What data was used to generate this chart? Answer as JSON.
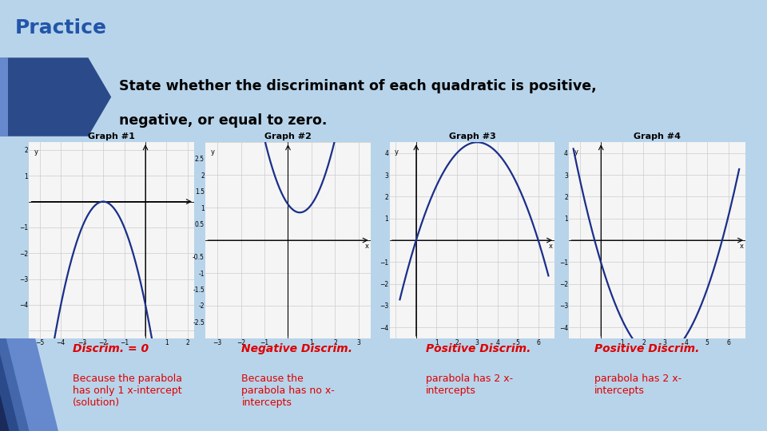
{
  "title": "Practice",
  "subtitle_line1": "State whether the discriminant of each quadratic is positive,",
  "subtitle_line2": "negative, or equal to zero.",
  "bg_color": "#b8d4ea",
  "header_bg": "#dce9f5",
  "title_color": "#2255aa",
  "dark_blue": "#1f3864",
  "mid_blue": "#4472c4",
  "graphs": [
    {
      "label": "Graph #1",
      "type": "g1",
      "discrim_title": "Discrim. = 0",
      "discrim_body": "Because the parabola\nhas only 1 x-intercept\n(solution)"
    },
    {
      "label": "Graph #2",
      "type": "g2",
      "discrim_title": "Negative Discrim.",
      "discrim_body": "Because the\nparabola has no x-\nintercepts"
    },
    {
      "label": "Graph #3",
      "type": "g3",
      "discrim_title": "Positive Discrim.",
      "discrim_body": "parabola has 2 x-\nintercepts"
    },
    {
      "label": "Graph #4",
      "type": "g4",
      "discrim_title": "Positive Discrim.",
      "discrim_body": "parabola has 2 x-\nintercepts"
    }
  ],
  "curve_color": "#1a2f8a",
  "discrim_color": "#dd0000",
  "graph_bg": "#f5f5f5",
  "grid_color": "#cccccc"
}
